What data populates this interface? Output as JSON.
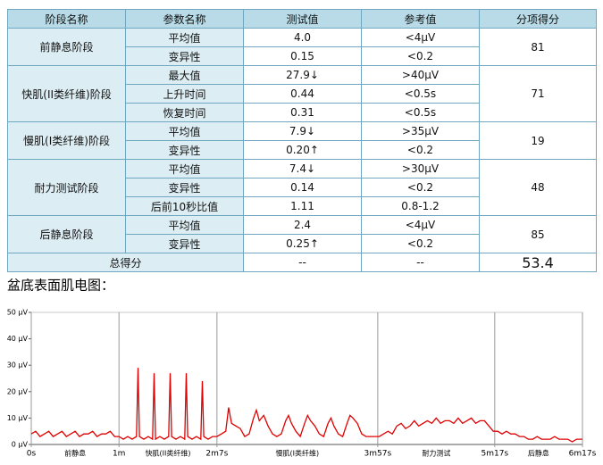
{
  "table": {
    "header": [
      "阶段名称",
      "参数名称",
      "测试值",
      "参考值",
      "分项得分"
    ],
    "groups": [
      {
        "stage": "前静息阶段",
        "score": "81",
        "rows": [
          [
            "平均值",
            "4.0",
            "<4μV"
          ],
          [
            "变异性",
            "0.15",
            "<0.2"
          ]
        ]
      },
      {
        "stage": "快肌(II类纤维)阶段",
        "score": "71",
        "rows": [
          [
            "最大值",
            "27.9↓",
            ">40μV"
          ],
          [
            "上升时间",
            "0.44",
            "<0.5s"
          ],
          [
            "恢复时间",
            "0.31",
            "<0.5s"
          ]
        ]
      },
      {
        "stage": "慢肌(I类纤维)阶段",
        "score": "19",
        "rows": [
          [
            "平均值",
            "7.9↓",
            ">35μV"
          ],
          [
            "变异性",
            "0.20↑",
            "<0.2"
          ]
        ]
      },
      {
        "stage": "耐力测试阶段",
        "score": "48",
        "rows": [
          [
            "平均值",
            "7.4↓",
            ">30μV"
          ],
          [
            "变异性",
            "0.14",
            "<0.2"
          ],
          [
            "后前10秒比值",
            "1.11",
            "0.8-1.2"
          ]
        ]
      },
      {
        "stage": "后静息阶段",
        "score": "85",
        "rows": [
          [
            "平均值",
            "2.4",
            "<4μV"
          ],
          [
            "变异性",
            "0.25↑",
            "<0.2"
          ]
        ]
      }
    ],
    "total": {
      "label": "总得分",
      "value": "--",
      "reference": "--",
      "score": "53.4"
    }
  },
  "chart_heading": "盆底表面肌电图：",
  "chart_data": {
    "type": "line",
    "color": "#e00000",
    "xlim": [
      0,
      377
    ],
    "ylim": [
      0,
      50
    ],
    "xticks": [
      {
        "value": 0,
        "label": "0s"
      },
      {
        "value": 60,
        "label": "1m"
      },
      {
        "value": 127,
        "label": "2m7s"
      },
      {
        "value": 237,
        "label": "3m57s"
      },
      {
        "value": 317,
        "label": "5m17s"
      },
      {
        "value": 377,
        "label": "6m17s"
      }
    ],
    "yticks": [
      {
        "value": 0,
        "label": "0 μV"
      },
      {
        "value": 10,
        "label": "10 μV"
      },
      {
        "value": 20,
        "label": "20 μV"
      },
      {
        "value": 30,
        "label": "30 μV"
      },
      {
        "value": 40,
        "label": "40 μV"
      },
      {
        "value": 50,
        "label": "50 μV"
      }
    ],
    "sections": [
      "前静息",
      "快肌(II类纤维)",
      "慢肌(I类纤维)",
      "耐力测试",
      "后静息"
    ],
    "x": [
      0,
      3,
      6,
      9,
      12,
      15,
      18,
      21,
      24,
      27,
      30,
      33,
      36,
      39,
      42,
      45,
      48,
      51,
      54,
      57,
      60,
      63,
      66,
      69,
      72,
      73,
      74,
      77,
      80,
      83,
      84,
      85,
      88,
      91,
      94,
      95,
      96,
      99,
      102,
      105,
      106,
      107,
      110,
      113,
      116,
      117,
      118,
      121,
      124,
      127,
      130,
      133,
      135,
      137,
      140,
      143,
      146,
      149,
      152,
      154,
      156,
      159,
      162,
      165,
      168,
      171,
      174,
      176,
      178,
      181,
      184,
      187,
      189,
      191,
      194,
      197,
      200,
      203,
      205,
      207,
      210,
      213,
      216,
      218,
      220,
      223,
      226,
      229,
      232,
      235,
      238,
      241,
      244,
      247,
      250,
      253,
      256,
      259,
      262,
      265,
      268,
      271,
      274,
      277,
      280,
      283,
      286,
      289,
      292,
      295,
      298,
      301,
      304,
      307,
      310,
      313,
      316,
      319,
      322,
      325,
      328,
      331,
      334,
      337,
      340,
      343,
      346,
      349,
      352,
      355,
      358,
      361,
      364,
      367,
      370,
      373,
      377
    ],
    "values": [
      4,
      5,
      3,
      4,
      5,
      3,
      4,
      5,
      3,
      4,
      5,
      3,
      4,
      4,
      5,
      3,
      4,
      4,
      5,
      3,
      3,
      2,
      3,
      2,
      3,
      29,
      3,
      2,
      3,
      2,
      27,
      2,
      3,
      2,
      3,
      27,
      3,
      2,
      3,
      2,
      27,
      3,
      2,
      3,
      2,
      24,
      3,
      2,
      3,
      3,
      4,
      5,
      14,
      8,
      7,
      6,
      3,
      4,
      10,
      13,
      9,
      11,
      7,
      4,
      3,
      4,
      9,
      11,
      8,
      5,
      3,
      8,
      11,
      9,
      7,
      4,
      3,
      8,
      10,
      7,
      4,
      3,
      8,
      11,
      10,
      8,
      4,
      3,
      3,
      3,
      3,
      4,
      5,
      4,
      7,
      8,
      6,
      7,
      9,
      7,
      8,
      9,
      8,
      10,
      8,
      9,
      9,
      8,
      10,
      8,
      9,
      10,
      8,
      9,
      9,
      7,
      5,
      5,
      4,
      5,
      4,
      4,
      3,
      3,
      2,
      2,
      3,
      2,
      2,
      2,
      3,
      2,
      2,
      2,
      1,
      2,
      2
    ]
  }
}
